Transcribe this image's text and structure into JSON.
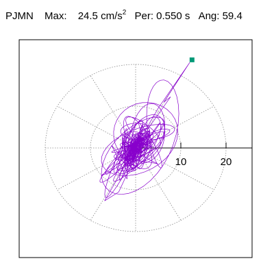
{
  "header": {
    "station": "PJMN",
    "max_label": "Max:",
    "max_value": "24.5",
    "max_unit": "cm/s",
    "max_unit_exp": "2",
    "period_label": "Per:",
    "period_value": "0.550 s",
    "angle_label": "Ang:",
    "angle_value": "59.4"
  },
  "chart_data": {
    "type": "line",
    "title": "",
    "xlabel": "",
    "ylabel": "",
    "polar_grid": true,
    "ring_radii": [
      10,
      20
    ],
    "spoke_step_deg": 30,
    "axis_tick_labels": [
      "10",
      "20"
    ],
    "max_radius": 24.5,
    "max_angle_deg": 59.4,
    "trace_color": "#8800cc",
    "marker_color": "#009977",
    "grid_color": "#888888"
  }
}
